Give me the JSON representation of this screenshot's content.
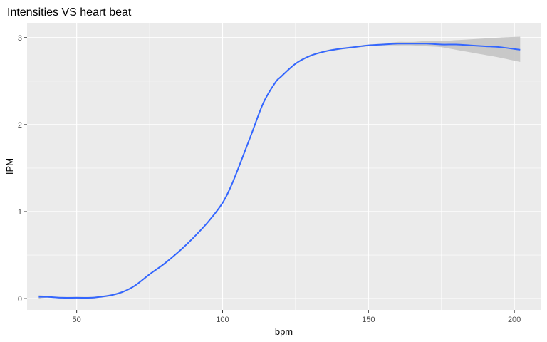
{
  "chart_data": {
    "type": "line",
    "title": "Intensities VS heart beat",
    "xlabel": "bpm",
    "ylabel": "IPM",
    "xlim": [
      33,
      209
    ],
    "ylim": [
      -0.13,
      3.17
    ],
    "x_ticks": [
      50,
      100,
      150,
      200
    ],
    "x_tick_labels": [
      "50",
      "100",
      "150",
      "200"
    ],
    "y_ticks": [
      0,
      1,
      2,
      3
    ],
    "y_tick_labels": [
      "0",
      "1",
      "2",
      "3"
    ],
    "grid": true,
    "background": "#ebebeb",
    "grid_color": "#ffffff",
    "series": [
      {
        "line_color": "#3366ff",
        "band_color": "#c4c4c4",
        "x": [
          37,
          40,
          45,
          50,
          55,
          58,
          62,
          66,
          70,
          75,
          80,
          85,
          90,
          95,
          100,
          103,
          106,
          110,
          114,
          118,
          120,
          125,
          130,
          135,
          140,
          145,
          150,
          155,
          160,
          165,
          170,
          175,
          180,
          185,
          190,
          195,
          202
        ],
        "y": [
          0.02,
          0.02,
          0.01,
          0.01,
          0.01,
          0.02,
          0.04,
          0.08,
          0.15,
          0.28,
          0.4,
          0.54,
          0.7,
          0.88,
          1.1,
          1.3,
          1.55,
          1.9,
          2.25,
          2.48,
          2.55,
          2.7,
          2.79,
          2.84,
          2.87,
          2.89,
          2.91,
          2.92,
          2.93,
          2.93,
          2.93,
          2.92,
          2.92,
          2.91,
          2.9,
          2.89,
          2.86
        ],
        "ci_lower": [
          0.0,
          0.01,
          0.0,
          0.0,
          0.0,
          0.01,
          0.03,
          0.07,
          0.14,
          0.27,
          0.39,
          0.53,
          0.69,
          0.87,
          1.09,
          1.29,
          1.54,
          1.89,
          2.24,
          2.47,
          2.54,
          2.69,
          2.78,
          2.83,
          2.86,
          2.88,
          2.9,
          2.91,
          2.91,
          2.91,
          2.9,
          2.89,
          2.86,
          2.83,
          2.8,
          2.77,
          2.72
        ],
        "ci_upper": [
          0.04,
          0.03,
          0.02,
          0.02,
          0.02,
          0.03,
          0.05,
          0.09,
          0.16,
          0.29,
          0.41,
          0.55,
          0.71,
          0.89,
          1.11,
          1.31,
          1.56,
          1.91,
          2.26,
          2.49,
          2.56,
          2.71,
          2.8,
          2.85,
          2.88,
          2.9,
          2.92,
          2.93,
          2.95,
          2.95,
          2.96,
          2.96,
          2.97,
          2.98,
          2.99,
          3.0,
          3.01
        ]
      }
    ]
  }
}
